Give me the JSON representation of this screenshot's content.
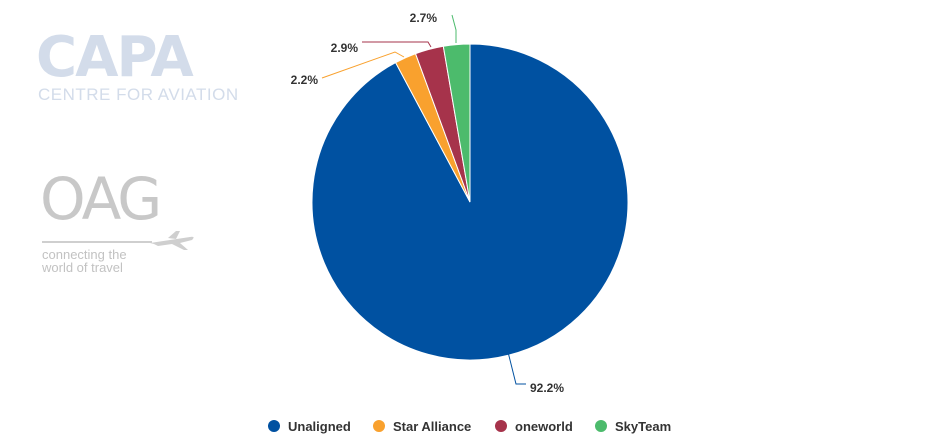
{
  "watermarks": {
    "capa": {
      "title": "CAPA",
      "subtitle": "CENTRE FOR AVIATION"
    },
    "oag": {
      "title": "OAG",
      "tagline_line1": "connecting the",
      "tagline_line2": "world of travel"
    }
  },
  "colors": {
    "unaligned": "#0051a1",
    "star_alliance": "#f9a12e",
    "oneworld": "#a6334b",
    "skyteam": "#4cbb6c"
  },
  "chart_data": {
    "type": "pie",
    "title": "",
    "legend_position": "bottom-center",
    "slices": [
      {
        "name": "Unaligned",
        "value": 92.2,
        "label": "92.2%",
        "color": "#0051a1"
      },
      {
        "name": "Star Alliance",
        "value": 2.2,
        "label": "2.2%",
        "color": "#f9a12e"
      },
      {
        "name": "oneworld",
        "value": 2.9,
        "label": "2.9%",
        "color": "#a6334b"
      },
      {
        "name": "SkyTeam",
        "value": 2.7,
        "label": "2.7%",
        "color": "#4cbb6c"
      }
    ]
  }
}
